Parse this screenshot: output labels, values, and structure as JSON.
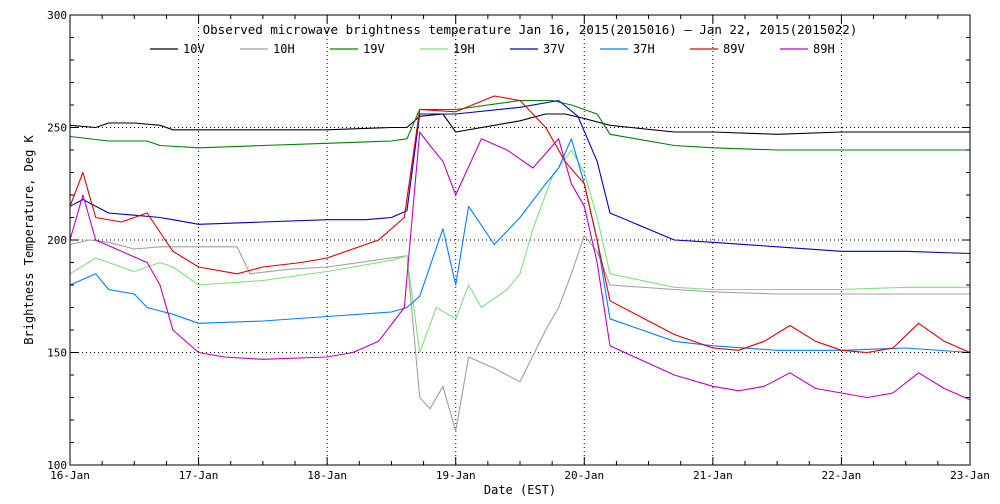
{
  "chart_data": {
    "type": "line",
    "title": "Observed microwave brightness temperature Jan 16, 2015(2015016) – Jan 22, 2015(2015022)",
    "xlabel": "Date (EST)",
    "ylabel": "Brightness Temperature, Deg K",
    "xlim": [
      0,
      7
    ],
    "ylim": [
      100,
      300
    ],
    "x_tick_labels": [
      "16-Jan",
      "17-Jan",
      "18-Jan",
      "19-Jan",
      "20-Jan",
      "21-Jan",
      "22-Jan",
      "23-Jan"
    ],
    "x_tick_values": [
      0,
      1,
      2,
      3,
      4,
      5,
      6,
      7
    ],
    "y_tick_labels": [
      "100",
      "150",
      "200",
      "250",
      "300"
    ],
    "y_tick_values": [
      100,
      150,
      200,
      250,
      300
    ],
    "grid": true,
    "legend_position": "top",
    "series": [
      {
        "name": "10V",
        "color": "#000000",
        "x": [
          0,
          0.2,
          0.3,
          0.5,
          0.7,
          0.8,
          1.0,
          1.5,
          2.0,
          2.5,
          2.62,
          2.72,
          2.9,
          3.0,
          3.3,
          3.5,
          3.7,
          3.85,
          4.0,
          4.2,
          4.7,
          5.0,
          5.5,
          6.0,
          6.5,
          7.0
        ],
        "y": [
          251,
          250,
          252,
          252,
          251,
          249,
          249,
          249,
          249,
          250,
          250,
          255,
          256,
          248,
          251,
          253,
          256,
          256,
          254,
          251,
          248,
          248,
          247,
          248,
          248,
          248
        ]
      },
      {
        "name": "10H",
        "color": "#a0a0a0",
        "x": [
          0,
          0.15,
          0.3,
          0.5,
          0.7,
          0.8,
          1.0,
          1.3,
          1.4,
          1.7,
          2.0,
          2.5,
          2.62,
          2.72,
          2.8,
          2.9,
          3.0,
          3.1,
          3.3,
          3.5,
          3.7,
          3.8,
          3.9,
          4.0,
          4.1,
          4.2,
          4.7,
          5.0,
          5.5,
          6.0,
          6.5,
          7.0
        ],
        "y": [
          198,
          200,
          199,
          196,
          197,
          197,
          197,
          197,
          185,
          187,
          188,
          192,
          193,
          130,
          125,
          135,
          115,
          148,
          143,
          137,
          160,
          170,
          185,
          202,
          195,
          180,
          178,
          177,
          176,
          176,
          176,
          176
        ]
      },
      {
        "name": "19V",
        "color": "#008000",
        "x": [
          0,
          0.3,
          0.6,
          0.7,
          1.0,
          1.5,
          2.0,
          2.5,
          2.62,
          2.72,
          3.0,
          3.5,
          3.75,
          3.9,
          4.1,
          4.2,
          4.7,
          5.0,
          5.5,
          6.0,
          6.5,
          7.0
        ],
        "y": [
          246,
          244,
          244,
          242,
          241,
          242,
          243,
          244,
          245,
          258,
          258,
          262,
          262,
          260,
          256,
          247,
          242,
          241,
          240,
          240,
          240,
          240
        ]
      },
      {
        "name": "19H",
        "color": "#80e080",
        "x": [
          0,
          0.2,
          0.4,
          0.5,
          0.7,
          0.8,
          1.0,
          1.5,
          2.0,
          2.5,
          2.62,
          2.72,
          2.85,
          3.0,
          3.1,
          3.2,
          3.4,
          3.5,
          3.6,
          3.75,
          3.9,
          4.0,
          4.1,
          4.2,
          4.7,
          5.0,
          5.5,
          6.0,
          6.5,
          7.0
        ],
        "y": [
          185,
          192,
          188,
          186,
          190,
          188,
          180,
          182,
          186,
          191,
          193,
          150,
          170,
          165,
          180,
          170,
          178,
          185,
          205,
          228,
          240,
          230,
          210,
          185,
          179,
          178,
          178,
          178,
          179,
          179
        ]
      },
      {
        "name": "37V",
        "color": "#0000c0",
        "x": [
          0,
          0.1,
          0.3,
          0.5,
          0.7,
          0.8,
          1.0,
          1.5,
          2.0,
          2.3,
          2.5,
          2.62,
          2.72,
          3.0,
          3.5,
          3.8,
          3.95,
          4.1,
          4.2,
          4.7,
          5.0,
          5.5,
          6.0,
          6.5,
          7.0
        ],
        "y": [
          215,
          218,
          212,
          211,
          210,
          209,
          207,
          208,
          209,
          209,
          210,
          213,
          256,
          256,
          259,
          262,
          255,
          235,
          212,
          200,
          199,
          197,
          195,
          195,
          194
        ]
      },
      {
        "name": "37H",
        "color": "#0080ff",
        "x": [
          0,
          0.2,
          0.3,
          0.5,
          0.6,
          0.8,
          1.0,
          1.5,
          2.0,
          2.5,
          2.62,
          2.72,
          2.9,
          3.0,
          3.1,
          3.3,
          3.5,
          3.7,
          3.8,
          3.9,
          4.0,
          4.1,
          4.2,
          4.7,
          5.0,
          5.5,
          6.0,
          6.5,
          7.0
        ],
        "y": [
          180,
          185,
          178,
          176,
          170,
          167,
          163,
          164,
          166,
          168,
          170,
          175,
          205,
          180,
          215,
          198,
          210,
          225,
          232,
          245,
          225,
          200,
          165,
          155,
          153,
          151,
          151,
          152,
          150
        ]
      },
      {
        "name": "89V",
        "color": "#e00000",
        "x": [
          0,
          0.1,
          0.2,
          0.4,
          0.6,
          0.8,
          1.0,
          1.3,
          1.5,
          1.8,
          2.0,
          2.4,
          2.6,
          2.72,
          3.0,
          3.3,
          3.5,
          3.7,
          3.85,
          4.0,
          4.1,
          4.2,
          4.7,
          5.0,
          5.2,
          5.4,
          5.6,
          5.8,
          6.0,
          6.2,
          6.4,
          6.6,
          6.8,
          7.0
        ],
        "y": [
          215,
          230,
          210,
          208,
          212,
          195,
          188,
          185,
          188,
          190,
          192,
          200,
          210,
          258,
          257,
          264,
          262,
          250,
          235,
          225,
          200,
          173,
          158,
          152,
          151,
          155,
          162,
          155,
          151,
          150,
          152,
          163,
          155,
          150
        ]
      },
      {
        "name": "89H",
        "color": "#c000c0",
        "x": [
          0,
          0.1,
          0.2,
          0.4,
          0.6,
          0.7,
          0.8,
          1.0,
          1.2,
          1.5,
          2.0,
          2.2,
          2.4,
          2.6,
          2.72,
          2.8,
          2.9,
          3.0,
          3.2,
          3.4,
          3.6,
          3.8,
          3.9,
          4.0,
          4.1,
          4.2,
          4.7,
          5.0,
          5.2,
          5.4,
          5.6,
          5.8,
          6.0,
          6.2,
          6.4,
          6.6,
          6.8,
          7.0
        ],
        "y": [
          200,
          220,
          200,
          195,
          190,
          180,
          160,
          150,
          148,
          147,
          148,
          150,
          155,
          170,
          248,
          242,
          235,
          220,
          245,
          240,
          232,
          245,
          225,
          215,
          190,
          153,
          140,
          135,
          133,
          135,
          141,
          134,
          132,
          130,
          132,
          141,
          134,
          129
        ]
      }
    ]
  }
}
